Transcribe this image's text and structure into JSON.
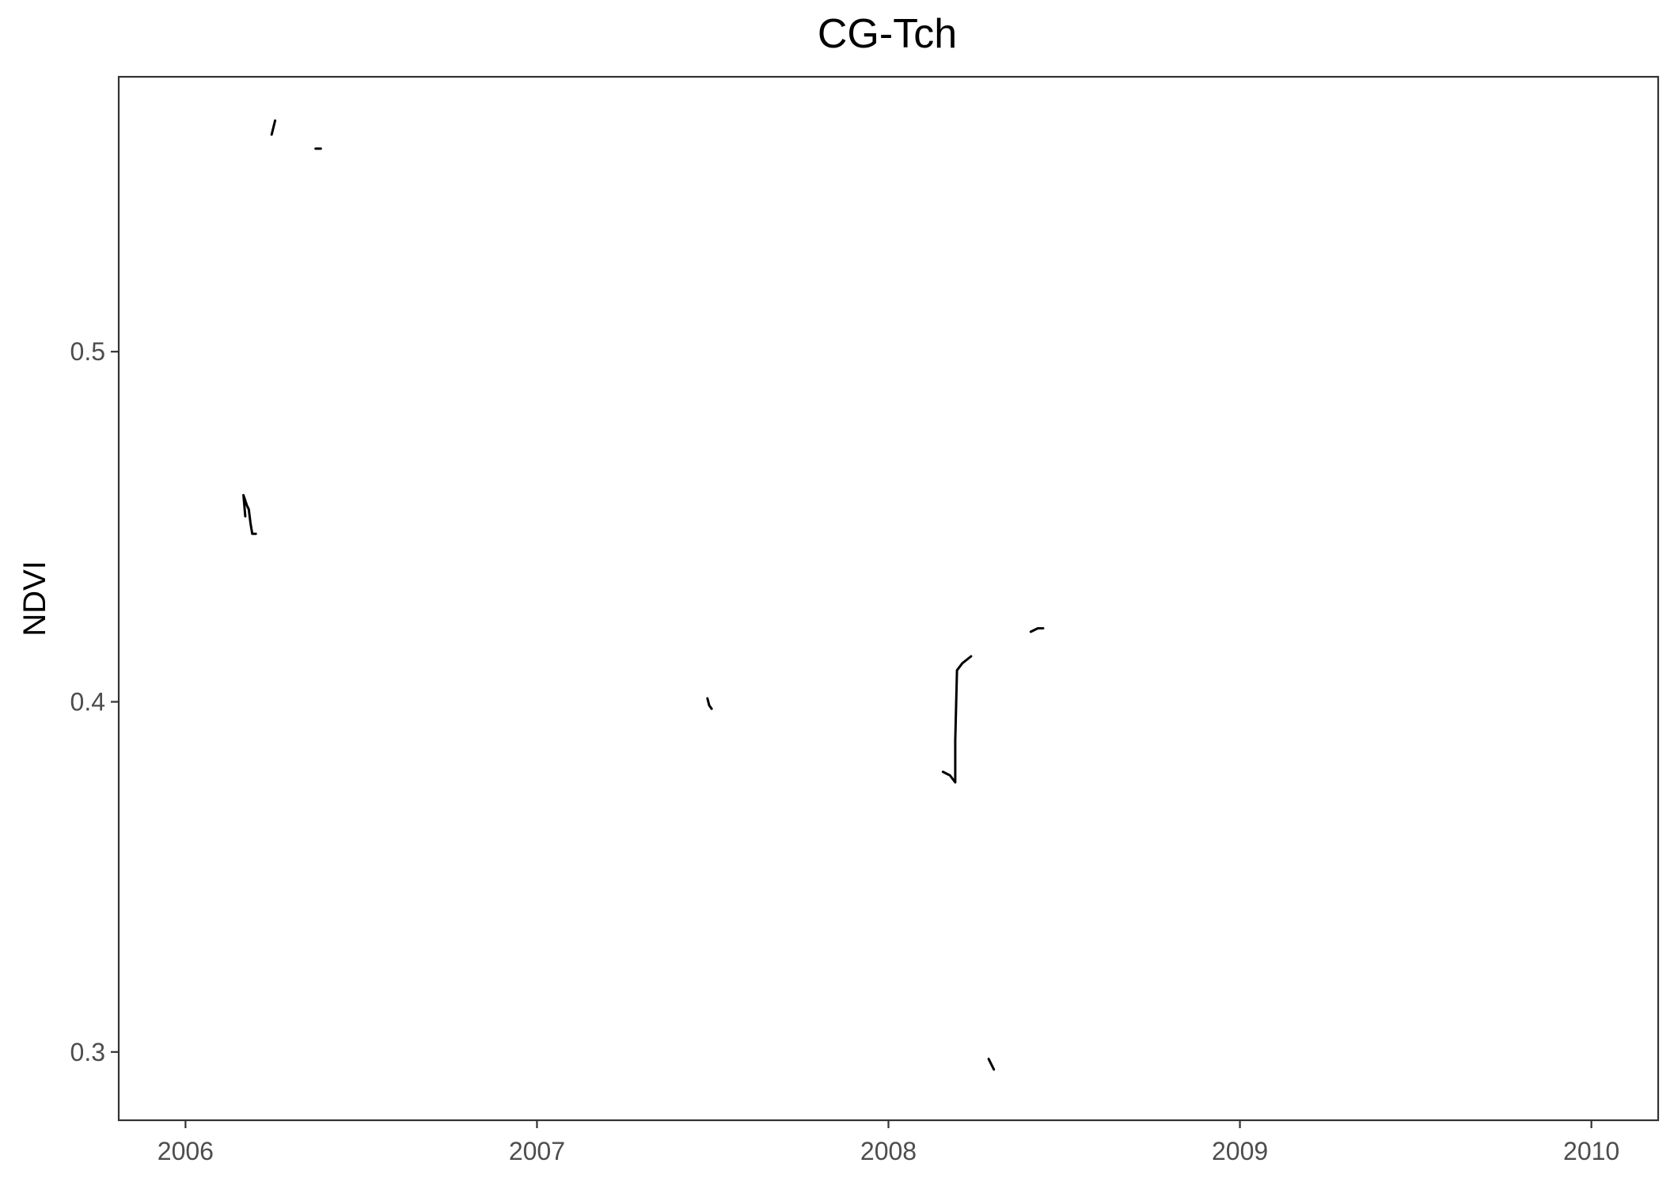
{
  "chart_data": {
    "type": "line",
    "title": "CG-Tch",
    "xlabel": "",
    "ylabel": "NDVI",
    "xlim": [
      2005.81,
      2010.19
    ],
    "ylim": [
      0.2805,
      0.5785
    ],
    "x_ticks": [
      2006,
      2007,
      2008,
      2009,
      2010
    ],
    "x_tick_labels": [
      "2006",
      "2007",
      "2008",
      "2009",
      "2010"
    ],
    "y_ticks": [
      0.3,
      0.4,
      0.5
    ],
    "y_tick_labels": [
      "0.3",
      "0.4",
      "0.5"
    ],
    "grid": false,
    "legend": "none",
    "line_color": "#000000",
    "segments": [
      {
        "points": [
          [
            2006.17,
            0.453
          ],
          [
            2006.165,
            0.459
          ],
          [
            2006.175,
            0.456
          ],
          [
            2006.18,
            0.455
          ],
          [
            2006.185,
            0.451
          ],
          [
            2006.19,
            0.448
          ],
          [
            2006.2,
            0.448
          ]
        ]
      },
      {
        "points": [
          [
            2006.245,
            0.562
          ],
          [
            2006.25,
            0.564
          ],
          [
            2006.255,
            0.566
          ]
        ]
      },
      {
        "points": [
          [
            2006.37,
            0.558
          ],
          [
            2006.385,
            0.558
          ]
        ]
      },
      {
        "points": [
          [
            2007.485,
            0.401
          ],
          [
            2007.49,
            0.399
          ],
          [
            2007.497,
            0.398
          ]
        ]
      },
      {
        "points": [
          [
            2008.155,
            0.38
          ],
          [
            2008.175,
            0.379
          ],
          [
            2008.19,
            0.377
          ],
          [
            2008.19,
            0.389
          ],
          [
            2008.195,
            0.409
          ],
          [
            2008.21,
            0.411
          ],
          [
            2008.235,
            0.413
          ]
        ]
      },
      {
        "points": [
          [
            2008.285,
            0.298
          ],
          [
            2008.295,
            0.296
          ],
          [
            2008.3,
            0.295
          ]
        ]
      },
      {
        "points": [
          [
            2008.405,
            0.42
          ],
          [
            2008.425,
            0.421
          ],
          [
            2008.44,
            0.421
          ]
        ]
      }
    ]
  }
}
